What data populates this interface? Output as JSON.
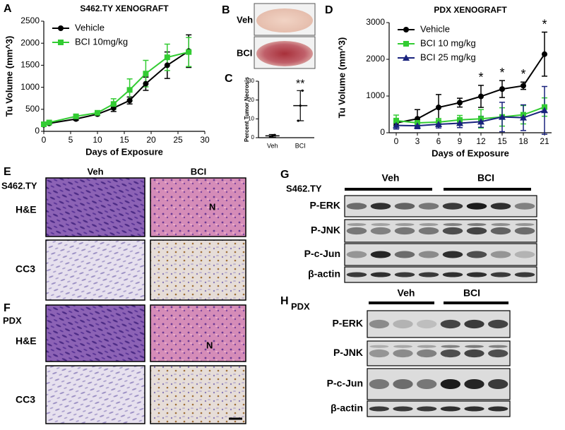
{
  "chart_data": [
    {
      "type": "line",
      "panel": "A",
      "title": "S462.TY XENOGRAFT",
      "x_label": "Days of Exposure",
      "y_label": "Tu Volume (mm^3)",
      "x": [
        0,
        1,
        6,
        10,
        13,
        16,
        19,
        23,
        27
      ],
      "xlim": [
        0,
        30
      ],
      "xticks": [
        0,
        5,
        10,
        15,
        20,
        25,
        30
      ],
      "ylim": [
        0,
        2500
      ],
      "yticks": [
        0,
        500,
        1000,
        1500,
        2000,
        2500
      ],
      "legend": "upper left",
      "series": [
        {
          "name": "Vehicle",
          "color": "#000000",
          "marker": "circle",
          "values": [
            150,
            180,
            280,
            390,
            530,
            700,
            1080,
            1500,
            1820
          ],
          "errors": [
            30,
            30,
            30,
            30,
            80,
            80,
            150,
            300,
            370
          ]
        },
        {
          "name": "BCI 10mg/kg",
          "color": "#33cc33",
          "marker": "square",
          "values": [
            160,
            200,
            340,
            420,
            620,
            940,
            1310,
            1680,
            1800
          ],
          "errors": [
            30,
            30,
            40,
            40,
            120,
            250,
            300,
            300,
            330
          ]
        }
      ]
    },
    {
      "type": "scatter",
      "panel": "C",
      "y_label": "Percent Tumor Necrosis",
      "categories": [
        "Veh",
        "BCI"
      ],
      "values": [
        1,
        17
      ],
      "errors": [
        0.7,
        8
      ],
      "points": [
        [
          0.5,
          1,
          1.4
        ],
        [
          9,
          17,
          25
        ]
      ],
      "color": "#000000",
      "ylim": [
        0,
        30
      ],
      "yticks": [
        0,
        10,
        20,
        30
      ],
      "annotations": [
        {
          "category": "BCI",
          "text": "**"
        }
      ]
    },
    {
      "type": "line",
      "panel": "D",
      "title": "PDX XENOGRAFT",
      "x_label": "Days of Exposure",
      "y_label": "Tu Volume (mm^3)",
      "x": [
        0,
        3,
        6,
        9,
        12,
        15,
        18,
        21
      ],
      "xlim": [
        -1,
        22
      ],
      "xticks": [
        0,
        3,
        6,
        9,
        12,
        15,
        18,
        21
      ],
      "ylim": [
        0,
        3000
      ],
      "yticks": [
        0,
        1000,
        2000,
        3000
      ],
      "legend": "upper left",
      "series": [
        {
          "name": "Vehicle",
          "color": "#000000",
          "marker": "circle",
          "values": [
            270,
            380,
            690,
            820,
            990,
            1190,
            1280,
            2140
          ],
          "errors": [
            60,
            250,
            350,
            120,
            300,
            230,
            100,
            600
          ]
        },
        {
          "name": "BCI 10 mg/kg",
          "color": "#33cc33",
          "marker": "square",
          "values": [
            330,
            270,
            290,
            350,
            380,
            430,
            490,
            700
          ],
          "errors": [
            150,
            100,
            100,
            120,
            250,
            250,
            250,
            250
          ]
        },
        {
          "name": "BCI 25 mg/kg",
          "color": "#1a237e",
          "marker": "triangle",
          "values": [
            200,
            190,
            230,
            260,
            300,
            430,
            410,
            610
          ],
          "errors": [
            100,
            80,
            100,
            120,
            150,
            400,
            350,
            650
          ]
        }
      ],
      "annotations": [
        {
          "x": 12,
          "text": "*"
        },
        {
          "x": 15,
          "text": "*"
        },
        {
          "x": 18,
          "text": "*"
        },
        {
          "x": 21,
          "text": "*"
        }
      ]
    }
  ],
  "figure": {
    "B": {
      "letter": "B",
      "veh": "Veh",
      "bci": "BCI"
    },
    "E": {
      "letter": "E",
      "model": "S462.TY",
      "veh": "Veh",
      "bci": "BCI",
      "stain1": "H&E",
      "stain2": "CC3",
      "necrosis": "N"
    },
    "F": {
      "letter": "F",
      "model": "PDX",
      "stain1": "H&E",
      "stain2": "CC3",
      "necrosis": "N"
    },
    "G": {
      "letter": "G",
      "model": "S462.TY",
      "veh": "Veh",
      "bci": "BCI",
      "rows": [
        "P-ERK",
        "P-JNK",
        "P-c-Jun",
        "β-actin"
      ]
    },
    "H": {
      "letter": "H",
      "model": "PDX",
      "veh": "Veh",
      "bci": "BCI",
      "rows": [
        "P-ERK",
        "P-JNK",
        "P-c-Jun",
        "β-actin"
      ]
    }
  }
}
